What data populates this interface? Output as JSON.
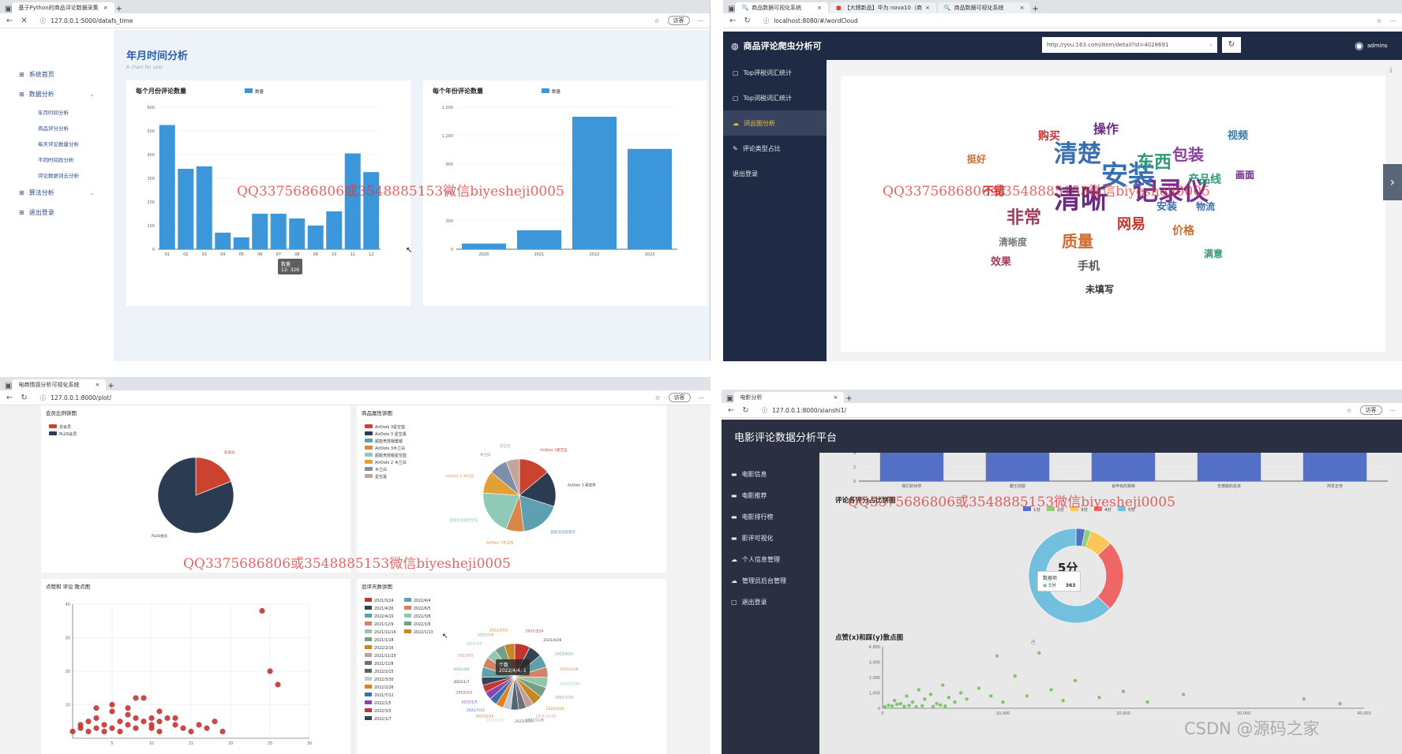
{
  "colors": {
    "bar": "#3b97d9",
    "dark_nav": "#1f2a44",
    "accent_yellow": "#f5c342",
    "scatter_red": "#c23531",
    "scatter_green": "#74c064",
    "watermark": "#dd3333"
  },
  "watermark": "QQ3375686806或3548885153微信biyesheji0005",
  "csdn_mark": "CSDN @源码之家",
  "panel1": {
    "tab": "基于Python的商品评论数据采集",
    "url": "127.0.0.1:5000/datafs_time",
    "guest": "访客",
    "page_title": "年月时间分析",
    "page_subtitle": "A chart for user",
    "sidebar": [
      {
        "label": "系统首页"
      },
      {
        "label": "数据分析"
      },
      {
        "label": "年月时间分析",
        "sub": true
      },
      {
        "label": "商品评分分析",
        "sub": true
      },
      {
        "label": "每天评论数量分析",
        "sub": true
      },
      {
        "label": "不同时间段分析",
        "sub": true
      },
      {
        "label": "评论数据词云分析",
        "sub": true
      },
      {
        "label": "算法分析"
      },
      {
        "label": "退出登录"
      }
    ],
    "tooltip": {
      "title": "数量",
      "value": "12: 326"
    }
  },
  "panel2": {
    "tab1": "商品数据可视化系统",
    "tab2": "【大牌新品】华为 nova10（商",
    "tab3": "商品数据可视化系统",
    "url": "localhost:8080/#/wordCloud",
    "app_title": "商品评论爬虫分析可",
    "search_value": "http://you.163.com/item/detail?id=4028691",
    "user": "admins",
    "sidebar": [
      {
        "label": "Top评税词汇统计"
      },
      {
        "label": "Top词税词汇统计"
      },
      {
        "label": "词云图分析"
      },
      {
        "label": "评论类型占比"
      },
      {
        "label": "退出登录"
      }
    ],
    "wordcloud": [
      {
        "t": "清晰",
        "c": "#6b2a83"
      },
      {
        "t": "记录仪",
        "c": "#7a2d8c"
      },
      {
        "t": "安装",
        "c": "#3a6fb0"
      },
      {
        "t": "清楚",
        "c": "#3a6fb0"
      },
      {
        "t": "东西",
        "c": "#2e9b7a"
      },
      {
        "t": "非常",
        "c": "#a23a5e"
      },
      {
        "t": "质量",
        "c": "#d06a2c"
      },
      {
        "t": "网易",
        "c": "#c23531"
      },
      {
        "t": "包装",
        "c": "#8a3fa0"
      },
      {
        "t": "产品线",
        "c": "#2e9b7a"
      },
      {
        "t": "手机",
        "c": "#555"
      },
      {
        "t": "购买",
        "c": "#c23531"
      },
      {
        "t": "操作",
        "c": "#6b2a83"
      },
      {
        "t": "视频",
        "c": "#2e7db0"
      },
      {
        "t": "安装",
        "c": "#3a6fb0"
      },
      {
        "t": "清晰度",
        "c": "#7a7a7a"
      },
      {
        "t": "不错",
        "c": "#c23531"
      },
      {
        "t": "效果",
        "c": "#a23a5e"
      },
      {
        "t": "价格",
        "c": "#d06a2c"
      },
      {
        "t": "物流",
        "c": "#3a6fb0"
      },
      {
        "t": "未填写",
        "c": "#333"
      },
      {
        "t": "满意",
        "c": "#2e9b7a"
      },
      {
        "t": "挺好",
        "c": "#d06a2c"
      },
      {
        "t": "画面",
        "c": "#6b2a83"
      }
    ]
  },
  "panel3": {
    "tab": "电商情感分析可视化系统",
    "url": "127.0.0.1:8000/plot/",
    "guest": "访客",
    "chart_titles": [
      "会员比例饼图",
      "商品属性饼图",
      "点赞和 评论 散点图",
      "追评天数饼图"
    ],
    "tooltip": {
      "title": "个数",
      "value": "2022/4/4: 1"
    }
  },
  "panel4": {
    "tab": "电影分析",
    "url": "127.0.0.1:8000/xianshi1/",
    "guest": "访客",
    "app_title": "电影评论数据分析平台",
    "sidebar": [
      {
        "label": "电影信息"
      },
      {
        "label": "电影推荐"
      },
      {
        "label": "电影排行榜"
      },
      {
        "label": "影评可视化"
      },
      {
        "label": "个人信息管理"
      },
      {
        "label": "管理员后台管理"
      },
      {
        "label": "退出登录"
      }
    ],
    "tooltip": {
      "title": "数据项",
      "name": "5分",
      "value": "363"
    },
    "donut_center": "5分"
  },
  "chart_data": [
    {
      "type": "bar",
      "title": "每个月份评论数量",
      "legend": [
        "数量"
      ],
      "categories": [
        "01",
        "02",
        "03",
        "04",
        "05",
        "06",
        "07",
        "08",
        "09",
        "10",
        "11",
        "12"
      ],
      "values": [
        525,
        340,
        350,
        70,
        50,
        150,
        150,
        130,
        100,
        160,
        405,
        326
      ],
      "ylim": [
        0,
        600
      ],
      "yticks": [
        0,
        100,
        200,
        300,
        400,
        500,
        600
      ]
    },
    {
      "type": "bar",
      "title": "每个年份评论数量",
      "legend": [
        "数量"
      ],
      "categories": [
        "2020",
        "2021",
        "2022",
        "2023"
      ],
      "values": [
        60,
        200,
        1400,
        1060
      ],
      "ylim": [
        0,
        1500
      ],
      "yticks": [
        0,
        300,
        600,
        900,
        1200,
        1500
      ],
      "ytick_labels": [
        "0",
        "300",
        "600",
        "900",
        "1,200",
        "1,500"
      ]
    },
    {
      "type": "pie",
      "title": "会员比例饼图",
      "legend": [
        "非会员",
        "PLUS会员"
      ],
      "series": [
        {
          "name": "非会员",
          "value": 19,
          "color": "#c9432f"
        },
        {
          "name": "PLUS会员",
          "value": 81,
          "color": "#2a3b52"
        }
      ]
    },
    {
      "type": "pie",
      "title": "商品属性饼图",
      "legend": [
        "AirDots 3星空蓝",
        "AirDots 3 星空黑",
        "超能竞技版套装",
        "AirDots 3木兰白",
        "超能竞技版星空蓝",
        "AirDots 2 木兰白",
        "木兰白",
        "星空黑"
      ],
      "series": [
        {
          "name": "AirDots 3星空蓝",
          "value": 14,
          "color": "#c9432f"
        },
        {
          "name": "AirDots 3 星空黑",
          "value": 16,
          "color": "#2a3b52"
        },
        {
          "name": "超能竞技版套装",
          "value": 18,
          "color": "#5e9fb0"
        },
        {
          "name": "AirDots 3木兰白",
          "value": 8,
          "color": "#d7874b"
        },
        {
          "name": "超能竞技版星空蓝",
          "value": 20,
          "color": "#8fc9b8"
        },
        {
          "name": "AirDots 2 木兰白",
          "value": 10,
          "color": "#e3a033"
        },
        {
          "name": "木兰白",
          "value": 8,
          "color": "#7d8fa8"
        },
        {
          "name": "星空黑",
          "value": 6,
          "color": "#c6a49a"
        }
      ]
    },
    {
      "type": "scatter",
      "title": "点赞和 评论 散点图",
      "xlim": [
        0,
        30
      ],
      "ylim": [
        0,
        40
      ],
      "xticks": [
        5,
        10,
        15,
        20,
        25,
        30
      ],
      "yticks": [
        10,
        20,
        30,
        40
      ],
      "points": [
        [
          0,
          2
        ],
        [
          1,
          3
        ],
        [
          1,
          4
        ],
        [
          2,
          2
        ],
        [
          2,
          5
        ],
        [
          3,
          3
        ],
        [
          3,
          6
        ],
        [
          4,
          2
        ],
        [
          4,
          4
        ],
        [
          5,
          3
        ],
        [
          5,
          8
        ],
        [
          6,
          2
        ],
        [
          6,
          5
        ],
        [
          7,
          4
        ],
        [
          7,
          7
        ],
        [
          8,
          3
        ],
        [
          8,
          6
        ],
        [
          9,
          5
        ],
        [
          10,
          3
        ],
        [
          10,
          4
        ],
        [
          11,
          2
        ],
        [
          11,
          5
        ],
        [
          12,
          6
        ],
        [
          13,
          4
        ],
        [
          14,
          3
        ],
        [
          15,
          2
        ],
        [
          16,
          4
        ],
        [
          17,
          3
        ],
        [
          18,
          5
        ],
        [
          19,
          2
        ],
        [
          3,
          9
        ],
        [
          5,
          10
        ],
        [
          7,
          9
        ],
        [
          8,
          12
        ],
        [
          9,
          12
        ],
        [
          10,
          6
        ],
        [
          11,
          8
        ],
        [
          13,
          6
        ],
        [
          24,
          38
        ],
        [
          25,
          20
        ],
        [
          26,
          16
        ]
      ]
    },
    {
      "type": "pie",
      "title": "追评天数饼图",
      "legend": [
        "2021/3/24",
        "2021/4/26",
        "2022/4/10",
        "2021/12/9",
        "2021/11/16",
        "2021/1/18",
        "2022/2/16",
        "2021/11/25",
        "2021/11/8",
        "2022/2/15",
        "2022/3/30",
        "2022/2/26",
        "2021/7/12",
        "2022/1/5",
        "2022/3/3",
        "2022/1/7",
        "2022/4/4",
        "2022/6/5",
        "2022/3/8",
        "2022/1/6",
        "2022/1/13"
      ],
      "values": [
        6,
        5,
        5,
        4,
        4,
        4,
        4,
        3,
        3,
        3,
        3,
        3,
        3,
        3,
        3,
        3,
        4,
        4,
        4,
        4,
        4
      ]
    },
    {
      "type": "bar",
      "title": "",
      "categories": [
        "我们的世界",
        "霸王别姬",
        "肖申克的救赎",
        "辛德勒的名单",
        "阿甘正传"
      ],
      "values": [
        4,
        4,
        4,
        4,
        4
      ],
      "ylim": [
        0,
        4
      ],
      "yticks": [
        0,
        2,
        4
      ]
    },
    {
      "type": "pie",
      "title": "评论各评分占比饼图",
      "legend": [
        "1分",
        "2分",
        "3分",
        "4分",
        "5分"
      ],
      "series": [
        {
          "name": "1分",
          "value": 18,
          "color": "#5470c6"
        },
        {
          "name": "2分",
          "value": 12,
          "color": "#91cc75"
        },
        {
          "name": "3分",
          "value": 45,
          "color": "#fac858"
        },
        {
          "name": "4分",
          "value": 140,
          "color": "#ee6666"
        },
        {
          "name": "5分",
          "value": 363,
          "color": "#73c0de"
        }
      ]
    },
    {
      "type": "scatter",
      "title": "点赞(x)和踩(y)散点图",
      "xlim": [
        0,
        40000
      ],
      "ylim": [
        0,
        4000
      ],
      "xticks": [
        0,
        10000,
        20000,
        30000,
        40000
      ],
      "xtick_labels": [
        "0",
        "10,000",
        "20,000",
        "30,000",
        "40,000"
      ],
      "yticks": [
        0,
        1000,
        2000,
        3000,
        4000
      ],
      "ytick_labels": [
        "0",
        "1,000",
        "2,000",
        "3,000",
        "4,000"
      ],
      "points": [
        [
          500,
          200
        ],
        [
          1000,
          500
        ],
        [
          1500,
          300
        ],
        [
          2000,
          800
        ],
        [
          2500,
          400
        ],
        [
          3000,
          1200
        ],
        [
          3500,
          600
        ],
        [
          4000,
          900
        ],
        [
          4500,
          300
        ],
        [
          5000,
          1500
        ],
        [
          5500,
          700
        ],
        [
          6000,
          400
        ],
        [
          6500,
          1000
        ],
        [
          7000,
          600
        ],
        [
          8000,
          1300
        ],
        [
          9000,
          800
        ],
        [
          9500,
          3400
        ],
        [
          10000,
          400
        ],
        [
          11000,
          2100
        ],
        [
          12000,
          800
        ],
        [
          13000,
          3600
        ],
        [
          14000,
          1200
        ],
        [
          15000,
          500
        ],
        [
          16000,
          1800
        ],
        [
          18000,
          700
        ],
        [
          20000,
          1100
        ],
        [
          22000,
          400
        ],
        [
          25000,
          900
        ],
        [
          35000,
          600
        ],
        [
          38000,
          300
        ],
        [
          200,
          100
        ],
        [
          800,
          150
        ],
        [
          1200,
          250
        ],
        [
          1800,
          120
        ],
        [
          2200,
          180
        ],
        [
          2800,
          90
        ],
        [
          3300,
          160
        ],
        [
          4200,
          110
        ],
        [
          4800,
          210
        ],
        [
          5200,
          140
        ]
      ]
    }
  ]
}
